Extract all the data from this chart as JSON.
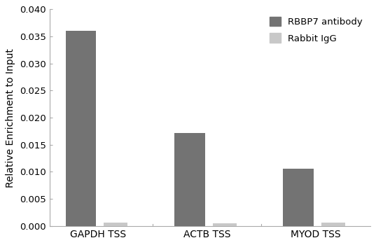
{
  "categories": [
    "GAPDH TSS",
    "ACTB TSS",
    "MYOD TSS"
  ],
  "rbbp7_values": [
    0.0361,
    0.0172,
    0.01055
  ],
  "igg_values": [
    0.00065,
    0.00045,
    0.00065
  ],
  "rbbp7_color": "#737373",
  "igg_color": "#c8c8c8",
  "ylabel": "Relative Enrichment to Input",
  "ylim": [
    0,
    0.04
  ],
  "yticks": [
    0.0,
    0.005,
    0.01,
    0.015,
    0.02,
    0.025,
    0.03,
    0.035,
    0.04
  ],
  "legend_labels": [
    "RBBP7 antibody",
    "Rabbit IgG"
  ],
  "rbbp7_bar_width": 0.28,
  "igg_bar_width": 0.22,
  "background_color": "#ffffff"
}
